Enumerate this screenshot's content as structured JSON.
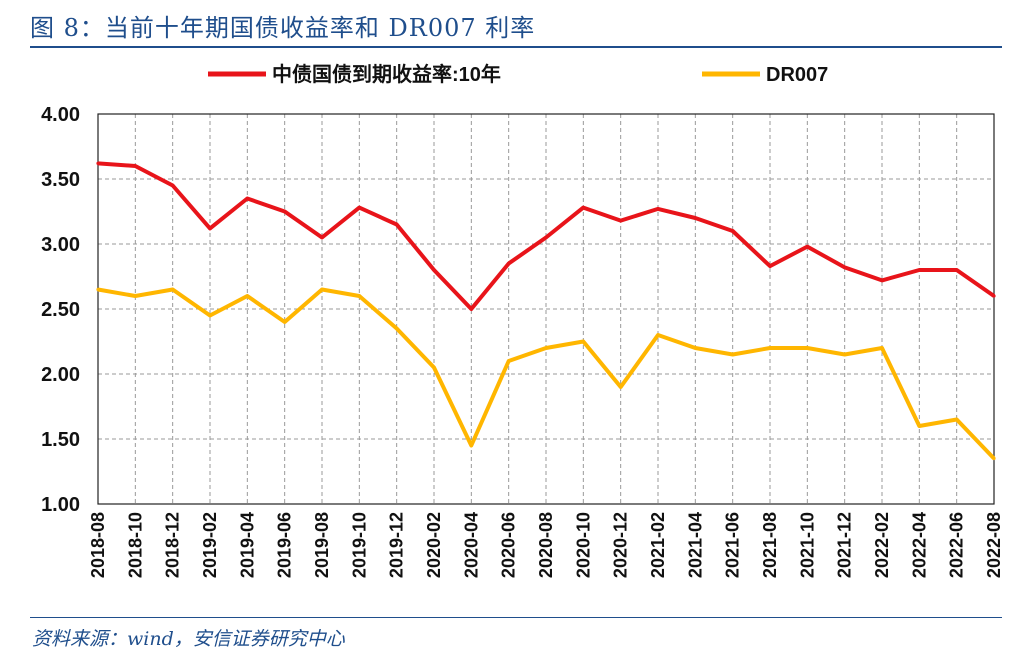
{
  "figure": {
    "title": "图 8：当前十年期国债收益率和 DR007 利率",
    "source": "资料来源：wind，安信证券研究中心"
  },
  "chart_data": {
    "type": "line",
    "xlabel": "",
    "ylabel": "",
    "ylim": [
      1.0,
      4.0
    ],
    "yticks": [
      "4.00",
      "3.50",
      "3.00",
      "2.50",
      "2.00",
      "1.50",
      "1.00"
    ],
    "x": [
      "2018-08",
      "2018-10",
      "2018-12",
      "2019-02",
      "2019-04",
      "2019-06",
      "2019-08",
      "2019-10",
      "2019-12",
      "2020-02",
      "2020-04",
      "2020-06",
      "2020-08",
      "2020-10",
      "2020-12",
      "2021-02",
      "2021-04",
      "2021-06",
      "2021-08",
      "2021-10",
      "2021-12",
      "2022-02",
      "2022-04",
      "2022-06",
      "2022-08"
    ],
    "grid": true,
    "legend_position": "top",
    "series": [
      {
        "name": "中债国债到期收益率:10年",
        "color": "#e8141a",
        "values": [
          3.62,
          3.6,
          3.45,
          3.12,
          3.35,
          3.25,
          3.05,
          3.28,
          3.15,
          2.8,
          2.5,
          2.85,
          3.05,
          3.28,
          3.18,
          3.27,
          3.2,
          3.1,
          2.83,
          2.98,
          2.82,
          2.72,
          2.8,
          2.8,
          2.6
        ]
      },
      {
        "name": "DR007",
        "color": "#ffb600",
        "values": [
          2.65,
          2.6,
          2.65,
          2.45,
          2.6,
          2.4,
          2.65,
          2.6,
          2.35,
          2.05,
          1.45,
          2.1,
          2.2,
          2.25,
          1.9,
          2.3,
          2.2,
          2.15,
          2.2,
          2.2,
          2.15,
          2.2,
          1.6,
          1.65,
          1.35
        ]
      }
    ]
  }
}
